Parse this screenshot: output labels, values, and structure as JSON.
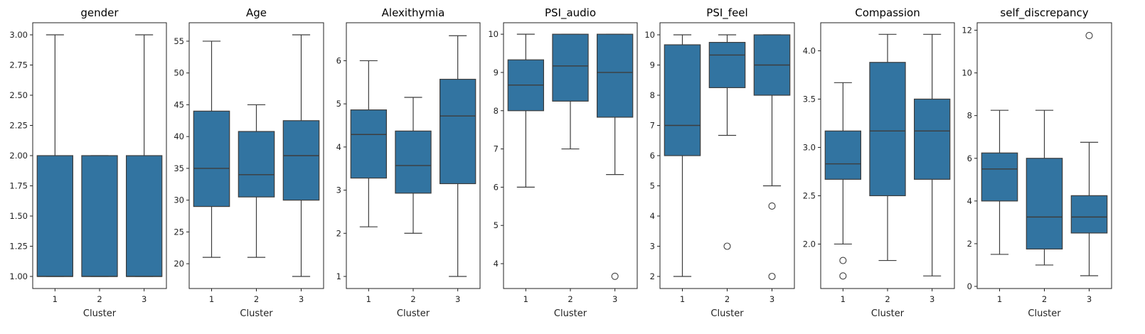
{
  "figure": {
    "background": "#ffffff",
    "box_color": "#3274a1",
    "line_color": "#3d3d3d"
  },
  "chart_data": [
    {
      "type": "boxplot",
      "title": "gender",
      "xlabel": "Cluster",
      "categories": [
        "1",
        "2",
        "3"
      ],
      "ylim": [
        0.9,
        3.1
      ],
      "yticks": [
        1.0,
        1.25,
        1.5,
        1.75,
        2.0,
        2.25,
        2.5,
        2.75,
        3.0
      ],
      "ytick_labels": [
        "1.00",
        "1.25",
        "1.50",
        "1.75",
        "2.00",
        "2.25",
        "2.50",
        "2.75",
        "3.00"
      ],
      "boxes": [
        {
          "category": "1",
          "whislo": 1.0,
          "q1": 1.0,
          "med": 1.0,
          "q3": 2.0,
          "whishi": 3.0,
          "fliers": []
        },
        {
          "category": "2",
          "whislo": 1.0,
          "q1": 1.0,
          "med": 1.0,
          "q3": 2.0,
          "whishi": 2.0,
          "fliers": []
        },
        {
          "category": "3",
          "whislo": 1.0,
          "q1": 1.0,
          "med": 1.0,
          "q3": 2.0,
          "whishi": 3.0,
          "fliers": []
        }
      ]
    },
    {
      "type": "boxplot",
      "title": "Age",
      "xlabel": "Cluster",
      "categories": [
        "1",
        "2",
        "3"
      ],
      "ylim": [
        16.1,
        57.9
      ],
      "yticks": [
        20,
        25,
        30,
        35,
        40,
        45,
        50,
        55
      ],
      "ytick_labels": [
        "20",
        "25",
        "30",
        "35",
        "40",
        "45",
        "50",
        "55"
      ],
      "boxes": [
        {
          "category": "1",
          "whislo": 21,
          "q1": 29,
          "med": 35,
          "q3": 44,
          "whishi": 55,
          "fliers": []
        },
        {
          "category": "2",
          "whislo": 21,
          "q1": 30.5,
          "med": 34,
          "q3": 40.8,
          "whishi": 45,
          "fliers": []
        },
        {
          "category": "3",
          "whislo": 18,
          "q1": 30,
          "med": 37,
          "q3": 42.5,
          "whishi": 56,
          "fliers": []
        }
      ]
    },
    {
      "type": "boxplot",
      "title": "Alexithymia",
      "xlabel": "Cluster",
      "categories": [
        "1",
        "2",
        "3"
      ],
      "ylim": [
        0.72,
        6.88
      ],
      "yticks": [
        1,
        2,
        3,
        4,
        5,
        6
      ],
      "ytick_labels": [
        "1",
        "2",
        "3",
        "4",
        "5",
        "6"
      ],
      "boxes": [
        {
          "category": "1",
          "whislo": 2.15,
          "q1": 3.28,
          "med": 4.29,
          "q3": 4.86,
          "whishi": 6.0,
          "fliers": []
        },
        {
          "category": "2",
          "whislo": 2.0,
          "q1": 2.93,
          "med": 3.57,
          "q3": 4.37,
          "whishi": 5.15,
          "fliers": []
        },
        {
          "category": "3",
          "whislo": 1.0,
          "q1": 3.15,
          "med": 4.72,
          "q3": 5.57,
          "whishi": 6.58,
          "fliers": []
        }
      ]
    },
    {
      "type": "boxplot",
      "title": "PSI_audio",
      "xlabel": "Cluster",
      "categories": [
        "1",
        "2",
        "3"
      ],
      "ylim": [
        3.35,
        10.3
      ],
      "yticks": [
        4,
        5,
        6,
        7,
        8,
        9,
        10
      ],
      "ytick_labels": [
        "4",
        "5",
        "6",
        "7",
        "8",
        "9",
        "10"
      ],
      "boxes": [
        {
          "category": "1",
          "whislo": 6.0,
          "q1": 8.0,
          "med": 8.67,
          "q3": 9.33,
          "whishi": 10.0,
          "fliers": []
        },
        {
          "category": "2",
          "whislo": 7.0,
          "q1": 8.25,
          "med": 9.17,
          "q3": 10.0,
          "whishi": 10.0,
          "fliers": []
        },
        {
          "category": "3",
          "whislo": 6.33,
          "q1": 7.83,
          "med": 9.0,
          "q3": 10.0,
          "whishi": 10.0,
          "fliers": [
            3.67
          ]
        }
      ]
    },
    {
      "type": "boxplot",
      "title": "PSI_feel",
      "xlabel": "Cluster",
      "categories": [
        "1",
        "2",
        "3"
      ],
      "ylim": [
        1.6,
        10.4
      ],
      "yticks": [
        2,
        3,
        4,
        5,
        6,
        7,
        8,
        9,
        10
      ],
      "ytick_labels": [
        "2",
        "3",
        "4",
        "5",
        "6",
        "7",
        "8",
        "9",
        "10"
      ],
      "boxes": [
        {
          "category": "1",
          "whislo": 2.0,
          "q1": 6.0,
          "med": 7.0,
          "q3": 9.67,
          "whishi": 10.0,
          "fliers": []
        },
        {
          "category": "2",
          "whislo": 6.67,
          "q1": 8.25,
          "med": 9.33,
          "q3": 9.75,
          "whishi": 10.0,
          "fliers": [
            3.0
          ]
        },
        {
          "category": "3",
          "whislo": 5.0,
          "q1": 8.0,
          "med": 9.0,
          "q3": 10.0,
          "whishi": 10.0,
          "fliers": [
            4.33,
            2.0
          ]
        }
      ]
    },
    {
      "type": "boxplot",
      "title": "Compassion",
      "xlabel": "Cluster",
      "categories": [
        "1",
        "2",
        "3"
      ],
      "ylim": [
        1.54,
        4.29
      ],
      "yticks": [
        2.0,
        2.5,
        3.0,
        3.5,
        4.0
      ],
      "ytick_labels": [
        "2.0",
        "2.5",
        "3.0",
        "3.5",
        "4.0"
      ],
      "boxes": [
        {
          "category": "1",
          "whislo": 2.0,
          "q1": 2.67,
          "med": 2.83,
          "q3": 3.17,
          "whishi": 3.67,
          "fliers": [
            1.83,
            1.67
          ]
        },
        {
          "category": "2",
          "whislo": 1.83,
          "q1": 2.5,
          "med": 3.17,
          "q3": 3.88,
          "whishi": 4.17,
          "fliers": []
        },
        {
          "category": "3",
          "whislo": 1.67,
          "q1": 2.67,
          "med": 3.17,
          "q3": 3.5,
          "whishi": 4.17,
          "fliers": []
        }
      ]
    },
    {
      "type": "boxplot",
      "title": "self_discrepancy",
      "xlabel": "Cluster",
      "categories": [
        "1",
        "2",
        "3"
      ],
      "ylim": [
        -0.1,
        12.35
      ],
      "yticks": [
        0,
        2,
        4,
        6,
        8,
        10,
        12
      ],
      "ytick_labels": [
        "0",
        "2",
        "4",
        "6",
        "8",
        "10",
        "12"
      ],
      "boxes": [
        {
          "category": "1",
          "whislo": 1.5,
          "q1": 4.0,
          "med": 5.5,
          "q3": 6.25,
          "whishi": 8.25,
          "fliers": []
        },
        {
          "category": "2",
          "whislo": 1.0,
          "q1": 1.75,
          "med": 3.25,
          "q3": 6.0,
          "whishi": 8.25,
          "fliers": []
        },
        {
          "category": "3",
          "whislo": 0.5,
          "q1": 2.5,
          "med": 3.25,
          "q3": 4.25,
          "whishi": 6.75,
          "fliers": [
            11.75
          ]
        }
      ]
    }
  ]
}
